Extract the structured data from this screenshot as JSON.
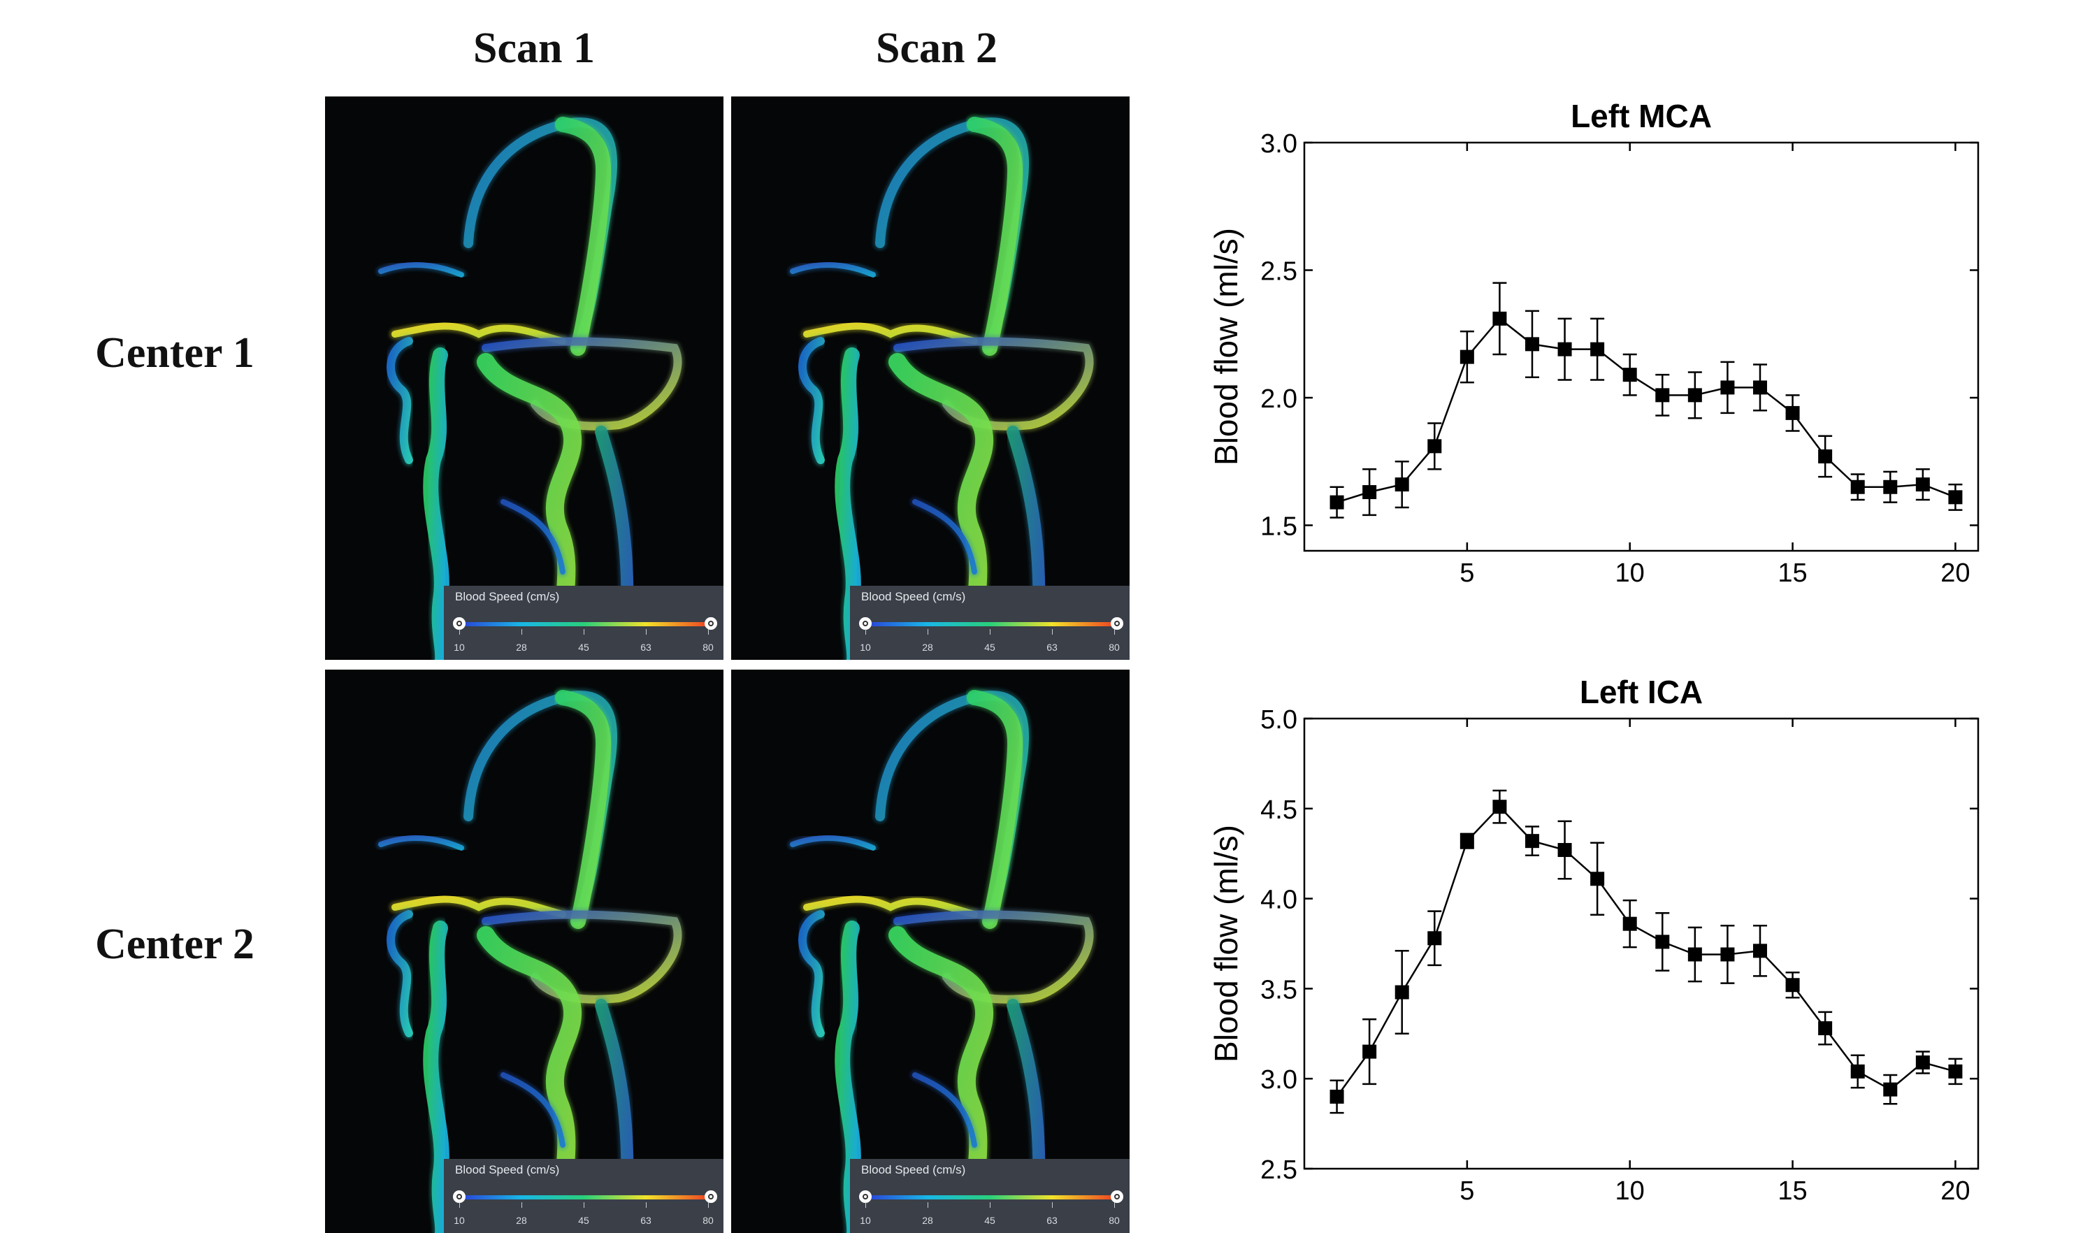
{
  "columns": [
    "Scan 1",
    "Scan 2"
  ],
  "rows": [
    "Center 1",
    "Center 2"
  ],
  "colorbar": {
    "title": "Blood Speed (cm/s)",
    "ticks": [
      "10",
      "28",
      "45",
      "63",
      "80"
    ],
    "colors": [
      "#2b3fd8",
      "#19b7e6",
      "#29d07a",
      "#f2e22a",
      "#ee4422"
    ]
  },
  "chart_data": [
    {
      "type": "line",
      "title": "Left MCA",
      "xlabel": "",
      "ylabel": "Blood flow (ml/s)",
      "xlim": [
        0,
        20.7
      ],
      "ylim": [
        1.4,
        3.0
      ],
      "xticks": [
        5,
        10,
        15,
        20
      ],
      "yticks": [
        1.5,
        2.0,
        2.5,
        3.0
      ],
      "ytick_labels": [
        "1.5",
        "2.0",
        "2.5",
        "3.0"
      ],
      "x": [
        1,
        2,
        3,
        4,
        5,
        6,
        7,
        8,
        9,
        10,
        11,
        12,
        13,
        14,
        15,
        16,
        17,
        18,
        19,
        20
      ],
      "y": [
        1.59,
        1.63,
        1.66,
        1.81,
        2.16,
        2.31,
        2.21,
        2.19,
        2.19,
        2.09,
        2.01,
        2.01,
        2.04,
        2.04,
        1.94,
        1.77,
        1.65,
        1.65,
        1.66,
        1.61
      ],
      "err": [
        0.06,
        0.09,
        0.09,
        0.09,
        0.1,
        0.14,
        0.13,
        0.12,
        0.12,
        0.08,
        0.08,
        0.09,
        0.1,
        0.09,
        0.07,
        0.08,
        0.05,
        0.06,
        0.06,
        0.05
      ],
      "marker": "square",
      "color": "#000000"
    },
    {
      "type": "line",
      "title": "Left ICA",
      "xlabel": "",
      "ylabel": "Blood flow (ml/s)",
      "xlim": [
        0,
        20.7
      ],
      "ylim": [
        2.5,
        5.0
      ],
      "xticks": [
        5,
        10,
        15,
        20
      ],
      "yticks": [
        2.5,
        3.0,
        3.5,
        4.0,
        4.5,
        5.0
      ],
      "ytick_labels": [
        "2.5",
        "3.0",
        "3.5",
        "4.0",
        "4.5",
        "5.0"
      ],
      "x": [
        1,
        2,
        3,
        4,
        5,
        6,
        7,
        8,
        9,
        10,
        11,
        12,
        13,
        14,
        15,
        16,
        17,
        18,
        19,
        20
      ],
      "y": [
        2.9,
        3.15,
        3.48,
        3.78,
        4.32,
        4.51,
        4.32,
        4.27,
        4.11,
        3.86,
        3.76,
        3.69,
        3.69,
        3.71,
        3.52,
        3.28,
        3.04,
        2.94,
        3.09,
        3.04
      ],
      "err": [
        0.09,
        0.18,
        0.23,
        0.15,
        0.04,
        0.09,
        0.08,
        0.16,
        0.2,
        0.13,
        0.16,
        0.15,
        0.16,
        0.14,
        0.07,
        0.09,
        0.09,
        0.08,
        0.06,
        0.07
      ],
      "marker": "square",
      "color": "#000000"
    }
  ]
}
